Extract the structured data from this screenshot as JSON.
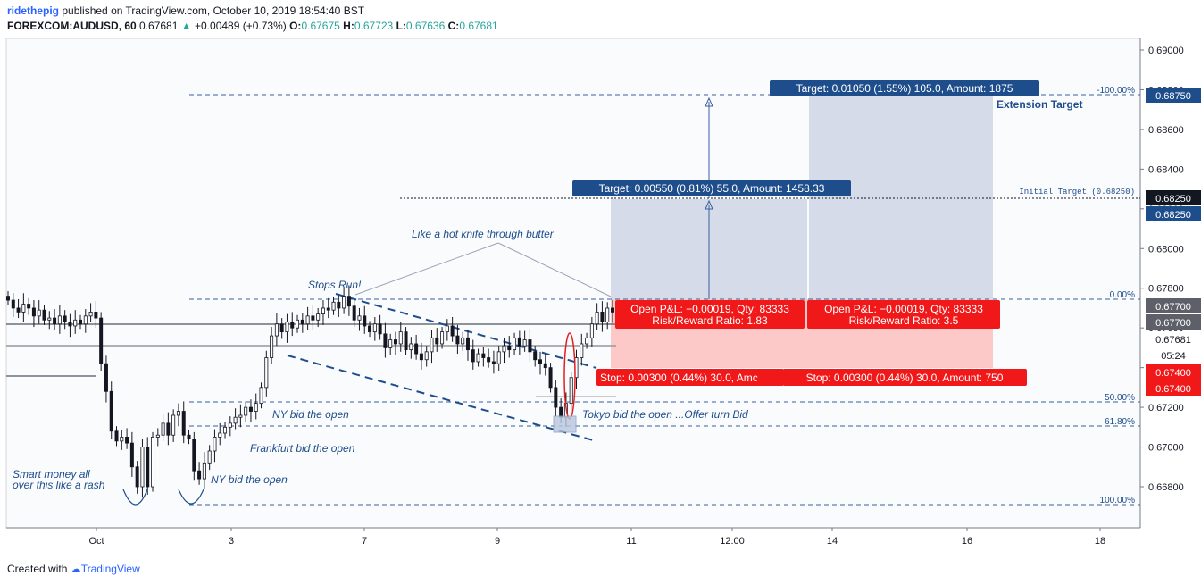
{
  "header": {
    "author": "ridethepig",
    "published": "published on TradingView.com, October 10, 2019 18:54:40 BST",
    "symbol": "FOREXCOM:AUDUSD, 60",
    "last": "0.67681",
    "change": "+0.00489 (+0.73%)",
    "o_label": "O:",
    "o": "0.67675",
    "h_label": "H:",
    "h": "0.67723",
    "l_label": "L:",
    "l": "0.67636",
    "c_label": "C:",
    "c": "0.67681"
  },
  "footer": {
    "created": "Created with",
    "brand": "TradingView"
  },
  "colors": {
    "bg": "#fafbfd",
    "axis": "#787b86",
    "blue_dark": "#1e4d8c",
    "dash": "#3a5f9e",
    "profit_zone": "#d0d7e5",
    "loss_zone": "#fcc8c8",
    "red_label": "#f01818",
    "candle": "#131722"
  },
  "chart_data": {
    "type": "candlestick",
    "ylim": [
      0.6665,
      0.691
    ],
    "y_ticks": [
      "0.69000",
      "0.68800",
      "0.68600",
      "0.68400",
      "0.68200",
      "0.68000",
      "0.67800",
      "0.67600",
      "0.67400",
      "0.67200",
      "0.67000",
      "0.66800"
    ],
    "x_ticks": [
      "Oct",
      "3",
      "7",
      "9",
      "11",
      "12:00",
      "14",
      "16",
      "18"
    ],
    "series_close": [
      0.6774,
      0.677,
      0.6768,
      0.6772,
      0.677,
      0.6766,
      0.6769,
      0.6764,
      0.6765,
      0.6762,
      0.6766,
      0.6763,
      0.6761,
      0.6764,
      0.6762,
      0.6766,
      0.6768,
      0.6765,
      0.6742,
      0.6728,
      0.6708,
      0.6703,
      0.6705,
      0.6702,
      0.669,
      0.668,
      0.67,
      0.668,
      0.6705,
      0.6706,
      0.6712,
      0.6706,
      0.6716,
      0.6718,
      0.6706,
      0.6704,
      0.6688,
      0.6684,
      0.6692,
      0.6698,
      0.6705,
      0.6707,
      0.671,
      0.6712,
      0.6715,
      0.6716,
      0.672,
      0.6718,
      0.6722,
      0.673,
      0.6745,
      0.6756,
      0.6762,
      0.6758,
      0.6763,
      0.676,
      0.6764,
      0.6762,
      0.6766,
      0.6764,
      0.6767,
      0.677,
      0.6769,
      0.6773,
      0.677,
      0.6776,
      0.6771,
      0.6764,
      0.6766,
      0.6761,
      0.6758,
      0.6762,
      0.6757,
      0.675,
      0.6754,
      0.6752,
      0.6758,
      0.6749,
      0.6752,
      0.6747,
      0.6744,
      0.6748,
      0.6755,
      0.6752,
      0.6758,
      0.6761,
      0.6756,
      0.6752,
      0.6755,
      0.6749,
      0.6743,
      0.6747,
      0.6745,
      0.6743,
      0.6742,
      0.6748,
      0.6751,
      0.6749,
      0.6755,
      0.6751,
      0.6754,
      0.6748,
      0.6744,
      0.6742,
      0.674,
      0.673,
      0.672,
      0.6715,
      0.6722,
      0.6735,
      0.6745,
      0.6752,
      0.6755,
      0.6762,
      0.6768,
      0.6763,
      0.677,
      0.6768
    ],
    "levels": {
      "fib_minus100": {
        "label": "-100.00%",
        "value": 0.6875
      },
      "fib_0": {
        "label": "0.00%",
        "value": 0.6775
      },
      "fib_50": {
        "label": "50.00%",
        "value": 0.6725
      },
      "fib_618": {
        "label": "61.80%",
        "value": 0.67109
      },
      "fib_100": {
        "label": "100.00%",
        "value": 0.6671
      },
      "initial_target": {
        "label": "Initial Target (0.68250)",
        "value": 0.6825
      }
    },
    "price_labels": {
      "extension": "0.68750",
      "initial_1": "0.68250",
      "initial_2": "0.68250",
      "entry_1": "0.67700",
      "entry_2": "0.67700",
      "last": "0.67681",
      "countdown": "05:24",
      "stop_1": "0.67400",
      "stop_2": "0.67400"
    },
    "positions": {
      "target_a": "Target: 0.00550 (0.81%) 55.0, Amount: 1458.33",
      "target_b": "Target: 0.01050 (1.55%) 105.0, Amount: 1875",
      "pnl_a": "Open P&L: −0.00019, Qty: 83333",
      "rr_a": "Risk/Reward Ratio: 1.83",
      "pnl_b": "Open P&L: −0.00019, Qty: 83333",
      "rr_b": "Risk/Reward Ratio: 3.5",
      "stop_a": "Stop: 0.00300 (0.44%) 30.0, Amc",
      "stop_b": "Stop: 0.00300 (0.44%) 30.0, Amount: 750"
    },
    "annotations": {
      "extension_target": "Extension Target",
      "hot_knife": "Like a hot knife through butter",
      "stops_run": "Stops Run!",
      "ny_bid_1": "NY bid the open",
      "frankfurt": "Frankfurt bid the open",
      "ny_bid_2": "NY bid the open",
      "smart_money_1": "Smart money all",
      "smart_money_2": "over this like a rash",
      "tokyo": "Tokyo bid the open ...Offer turn Bid"
    }
  }
}
